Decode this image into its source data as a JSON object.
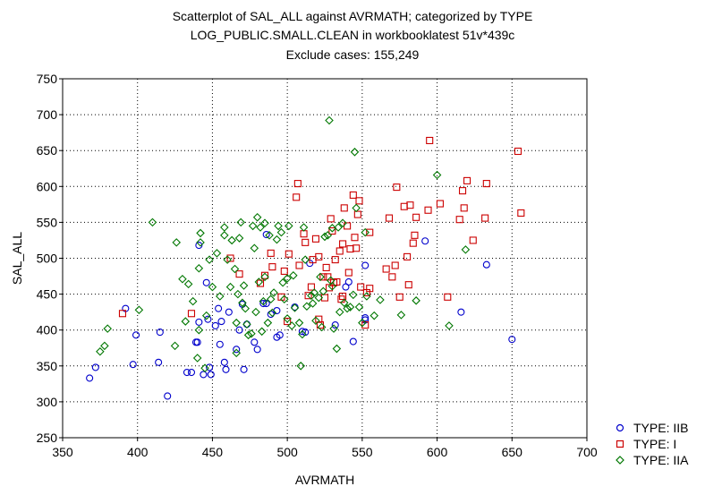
{
  "chart_data": {
    "type": "scatter",
    "title": "Scatterplot of SAL_ALL against AVRMATH; categorized by TYPE",
    "subtitle": "LOG_PUBLIC.SMALL.CLEAN in workbooklatest 51v*439c",
    "subtitle2": "Exclude cases: 155,249",
    "xlabel": "AVRMATH",
    "ylabel": "SAL_ALL",
    "xlim": [
      350,
      700
    ],
    "ylim": [
      250,
      750
    ],
    "xticks": [
      350,
      400,
      450,
      500,
      550,
      600,
      650,
      700
    ],
    "yticks": [
      250,
      300,
      350,
      400,
      450,
      500,
      550,
      600,
      650,
      700,
      750
    ],
    "grid": true,
    "legend_position": "bottom-right",
    "series": [
      {
        "name": "TYPE: IIB",
        "color": "#0000cc",
        "marker": "circle",
        "points": [
          [
            368,
            333
          ],
          [
            372,
            348
          ],
          [
            392,
            430
          ],
          [
            397,
            352
          ],
          [
            399,
            393
          ],
          [
            414,
            355
          ],
          [
            415,
            397
          ],
          [
            420,
            308
          ],
          [
            433,
            341
          ],
          [
            436,
            341
          ],
          [
            439,
            383
          ],
          [
            440,
            383
          ],
          [
            441,
            518
          ],
          [
            441,
            411
          ],
          [
            444,
            338
          ],
          [
            446,
            466
          ],
          [
            447,
            415
          ],
          [
            448,
            348
          ],
          [
            449,
            338
          ],
          [
            452,
            406
          ],
          [
            454,
            430
          ],
          [
            455,
            380
          ],
          [
            456,
            412
          ],
          [
            458,
            355
          ],
          [
            459,
            345
          ],
          [
            461,
            425
          ],
          [
            466,
            373
          ],
          [
            468,
            400
          ],
          [
            470,
            436
          ],
          [
            471,
            345
          ],
          [
            473,
            408
          ],
          [
            478,
            383
          ],
          [
            480,
            373
          ],
          [
            484,
            437
          ],
          [
            486,
            437
          ],
          [
            486,
            533
          ],
          [
            489,
            422
          ],
          [
            493,
            390
          ],
          [
            493,
            427
          ],
          [
            495,
            393
          ],
          [
            505,
            432
          ],
          [
            510,
            398
          ],
          [
            512,
            397
          ],
          [
            515,
            493
          ],
          [
            532,
            407
          ],
          [
            539,
            460
          ],
          [
            541,
            467
          ],
          [
            544,
            384
          ],
          [
            552,
            490
          ],
          [
            552,
            417
          ],
          [
            552,
            414
          ],
          [
            592,
            524
          ],
          [
            616,
            425
          ],
          [
            633,
            491
          ],
          [
            650,
            387
          ]
        ]
      },
      {
        "name": "TYPE: I",
        "color": "#cc0000",
        "marker": "square",
        "points": [
          [
            390,
            423
          ],
          [
            436,
            423
          ],
          [
            462,
            500
          ],
          [
            468,
            478
          ],
          [
            482,
            465
          ],
          [
            485,
            476
          ],
          [
            489,
            507
          ],
          [
            490,
            488
          ],
          [
            496,
            446
          ],
          [
            498,
            482
          ],
          [
            500,
            412
          ],
          [
            501,
            506
          ],
          [
            506,
            585
          ],
          [
            507,
            604
          ],
          [
            508,
            490
          ],
          [
            511,
            534
          ],
          [
            512,
            522
          ],
          [
            514,
            448
          ],
          [
            516,
            460
          ],
          [
            517,
            498
          ],
          [
            519,
            527
          ],
          [
            521,
            502
          ],
          [
            521,
            415
          ],
          [
            522,
            407
          ],
          [
            524,
            474
          ],
          [
            525,
            445
          ],
          [
            526,
            487
          ],
          [
            527,
            474
          ],
          [
            528,
            459
          ],
          [
            529,
            555
          ],
          [
            530,
            538
          ],
          [
            531,
            466
          ],
          [
            532,
            498
          ],
          [
            533,
            467
          ],
          [
            535,
            510
          ],
          [
            536,
            443
          ],
          [
            537,
            520
          ],
          [
            537,
            447
          ],
          [
            538,
            570
          ],
          [
            540,
            545
          ],
          [
            541,
            480
          ],
          [
            542,
            513
          ],
          [
            544,
            588
          ],
          [
            545,
            529
          ],
          [
            546,
            514
          ],
          [
            547,
            561
          ],
          [
            548,
            580
          ],
          [
            549,
            460
          ],
          [
            552,
            407
          ],
          [
            553,
            452
          ],
          [
            555,
            458
          ],
          [
            555,
            536
          ],
          [
            566,
            485
          ],
          [
            568,
            556
          ],
          [
            570,
            474
          ],
          [
            572,
            490
          ],
          [
            573,
            599
          ],
          [
            575,
            446
          ],
          [
            578,
            572
          ],
          [
            580,
            502
          ],
          [
            581,
            463
          ],
          [
            582,
            574
          ],
          [
            584,
            521
          ],
          [
            585,
            532
          ],
          [
            586,
            557
          ],
          [
            594,
            567
          ],
          [
            595,
            664
          ],
          [
            602,
            576
          ],
          [
            607,
            446
          ],
          [
            615,
            554
          ],
          [
            617,
            594
          ],
          [
            618,
            570
          ],
          [
            620,
            608
          ],
          [
            624,
            525
          ],
          [
            632,
            556
          ],
          [
            633,
            604
          ],
          [
            654,
            649
          ],
          [
            656,
            563
          ]
        ]
      },
      {
        "name": "TYPE: IIA",
        "color": "#007700",
        "marker": "diamond",
        "points": [
          [
            375,
            370
          ],
          [
            378,
            378
          ],
          [
            380,
            402
          ],
          [
            401,
            428
          ],
          [
            410,
            550
          ],
          [
            425,
            378
          ],
          [
            426,
            522
          ],
          [
            430,
            471
          ],
          [
            432,
            412
          ],
          [
            434,
            464
          ],
          [
            437,
            440
          ],
          [
            440,
            361
          ],
          [
            441,
            400
          ],
          [
            441,
            486
          ],
          [
            442,
            535
          ],
          [
            442,
            522
          ],
          [
            445,
            347
          ],
          [
            446,
            420
          ],
          [
            448,
            498
          ],
          [
            450,
            460
          ],
          [
            453,
            507
          ],
          [
            455,
            447
          ],
          [
            458,
            543
          ],
          [
            458,
            532
          ],
          [
            460,
            498
          ],
          [
            462,
            460
          ],
          [
            463,
            525
          ],
          [
            465,
            485
          ],
          [
            466,
            410
          ],
          [
            466,
            368
          ],
          [
            467,
            450
          ],
          [
            468,
            528
          ],
          [
            469,
            550
          ],
          [
            470,
            438
          ],
          [
            471,
            462
          ],
          [
            472,
            430
          ],
          [
            473,
            408
          ],
          [
            474,
            393
          ],
          [
            476,
            395
          ],
          [
            477,
            545
          ],
          [
            478,
            514
          ],
          [
            479,
            425
          ],
          [
            480,
            557
          ],
          [
            481,
            467
          ],
          [
            482,
            543
          ],
          [
            483,
            398
          ],
          [
            484,
            440
          ],
          [
            485,
            474
          ],
          [
            485,
            549
          ],
          [
            487,
            410
          ],
          [
            488,
            532
          ],
          [
            489,
            443
          ],
          [
            490,
            424
          ],
          [
            491,
            452
          ],
          [
            493,
            526
          ],
          [
            494,
            545
          ],
          [
            496,
            536
          ],
          [
            497,
            466
          ],
          [
            498,
            443
          ],
          [
            500,
            472
          ],
          [
            500,
            416
          ],
          [
            501,
            545
          ],
          [
            503,
            406
          ],
          [
            504,
            476
          ],
          [
            505,
            431
          ],
          [
            508,
            410
          ],
          [
            509,
            350
          ],
          [
            510,
            394
          ],
          [
            511,
            543
          ],
          [
            512,
            498
          ],
          [
            513,
            433
          ],
          [
            516,
            448
          ],
          [
            517,
            437
          ],
          [
            518,
            452
          ],
          [
            519,
            413
          ],
          [
            521,
            445
          ],
          [
            522,
            474
          ],
          [
            523,
            404
          ],
          [
            524,
            454
          ],
          [
            525,
            530
          ],
          [
            527,
            532
          ],
          [
            528,
            692
          ],
          [
            529,
            469
          ],
          [
            530,
            542
          ],
          [
            530,
            461
          ],
          [
            531,
            402
          ],
          [
            533,
            374
          ],
          [
            534,
            543
          ],
          [
            535,
            425
          ],
          [
            537,
            549
          ],
          [
            538,
            438
          ],
          [
            540,
            430
          ],
          [
            542,
            432
          ],
          [
            544,
            449
          ],
          [
            545,
            648
          ],
          [
            546,
            570
          ],
          [
            548,
            432
          ],
          [
            550,
            410
          ],
          [
            552,
            536
          ],
          [
            553,
            447
          ],
          [
            558,
            420
          ],
          [
            562,
            442
          ],
          [
            576,
            421
          ],
          [
            586,
            441
          ],
          [
            600,
            616
          ],
          [
            608,
            406
          ],
          [
            619,
            512
          ]
        ]
      }
    ]
  }
}
